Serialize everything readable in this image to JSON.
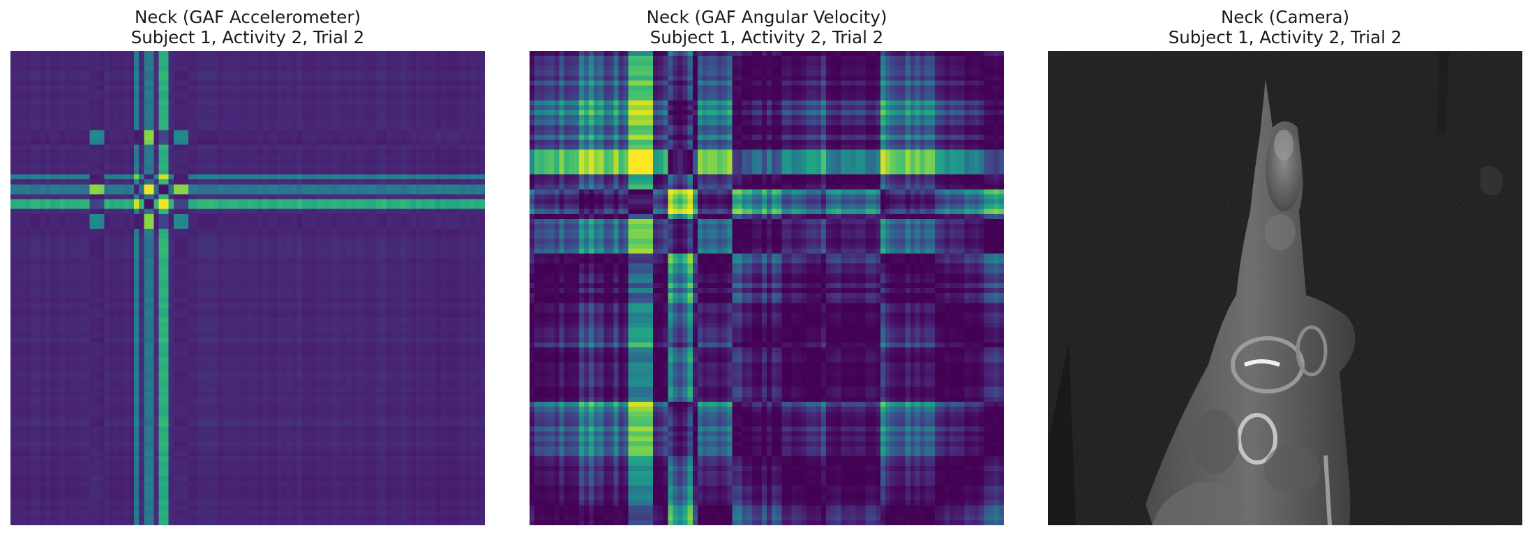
{
  "panels": [
    {
      "title_line1": "Neck (GAF Accelerometer)",
      "title_line2": "Subject 1, Activity 2, Trial 2",
      "kind": "gaf",
      "colormap": "viridis"
    },
    {
      "title_line1": "Neck (GAF Angular Velocity)",
      "title_line2": "Subject 1, Activity 2, Trial 2",
      "kind": "gaf",
      "colormap": "viridis"
    },
    {
      "title_line1": "Neck (Camera)",
      "title_line2": "Subject 1, Activity 2, Trial 2",
      "kind": "camera",
      "colormap": "grayscale"
    }
  ],
  "colors": {
    "title_text": "#1a1a1a",
    "background": "#ffffff"
  }
}
